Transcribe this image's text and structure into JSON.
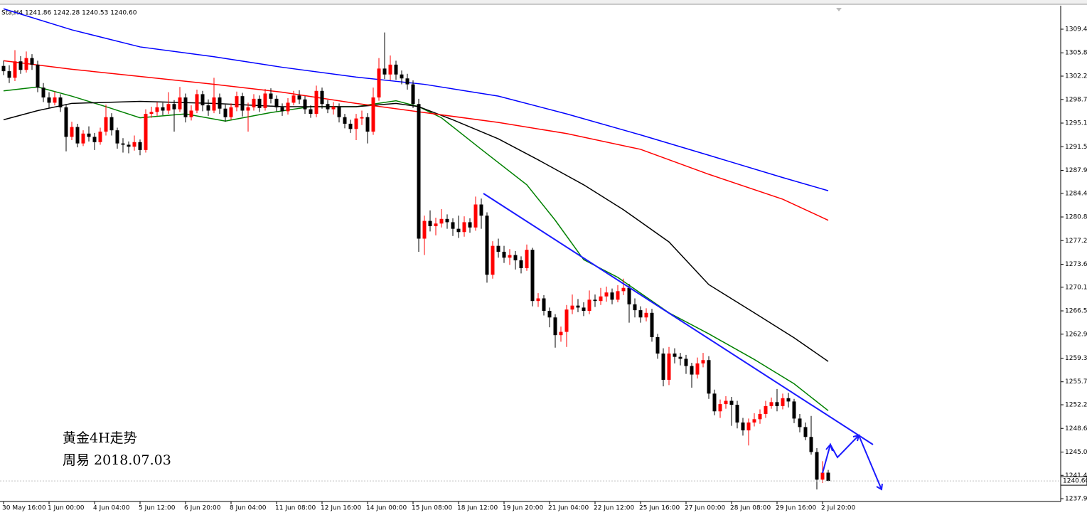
{
  "chart_data": {
    "type": "candlestick",
    "subtitle": "Sta,H4  1241.86 1242.28 1240.53 1240.60",
    "annotations": [
      "黄金4H走势",
      "周易  2018.07.03"
    ],
    "up_color": "#ff0000",
    "down_color": "#000000",
    "categories": [
      "30 May 16:00",
      null,
      null,
      null,
      null,
      null,
      null,
      null,
      "1 Jun 00:00",
      null,
      null,
      null,
      null,
      null,
      null,
      null,
      "4 Jun 04:00",
      null,
      null,
      null,
      null,
      null,
      null,
      null,
      "5 Jun 12:00",
      null,
      null,
      null,
      null,
      null,
      null,
      null,
      "6 Jun 20:00",
      null,
      null,
      null,
      null,
      null,
      null,
      null,
      "8 Jun 04:00",
      null,
      null,
      null,
      null,
      null,
      null,
      null,
      "11 Jun 08:00",
      null,
      null,
      null,
      null,
      null,
      null,
      null,
      "12 Jun 16:00",
      null,
      null,
      null,
      null,
      null,
      null,
      null,
      "14 Jun 00:00",
      null,
      null,
      null,
      null,
      null,
      null,
      null,
      "15 Jun 08:00",
      null,
      null,
      null,
      null,
      null,
      null,
      null,
      "18 Jun 12:00",
      null,
      null,
      null,
      null,
      null,
      null,
      null,
      "19 Jun 20:00",
      null,
      null,
      null,
      null,
      null,
      null,
      null,
      "21 Jun 04:00",
      null,
      null,
      null,
      null,
      null,
      null,
      null,
      "22 Jun 12:00",
      null,
      null,
      null,
      null,
      null,
      null,
      null,
      "25 Jun 16:00",
      null,
      null,
      null,
      null,
      null,
      null,
      null,
      "27 Jun 00:00",
      null,
      null,
      null,
      null,
      null,
      null,
      null,
      "28 Jun 08:00",
      null,
      null,
      null,
      null,
      null,
      null,
      null,
      "29 Jun 16:00",
      null,
      null,
      null,
      null,
      null,
      null,
      null,
      "2 Jul 20:00",
      null
    ],
    "open": [
      1303.8,
      1303.0,
      1302.0,
      1304.5,
      1303.2,
      1305.0,
      1304.0,
      1300.5,
      1299.0,
      1298.2,
      1299.0,
      1297.5,
      1293.0,
      1294.5,
      1292.0,
      1293.5,
      1293.0,
      1292.2,
      1293.8,
      1296.0,
      1294.0,
      1292.0,
      1291.8,
      1291.5,
      1292.2,
      1291.0,
      1296.5,
      1296.8,
      1297.5,
      1297.0,
      1298.0,
      1297.2,
      1299.0,
      1296.0,
      1297.0,
      1299.5,
      1297.8,
      1297.0,
      1299.0,
      1297.3,
      1296.0,
      1297.5,
      1299.2,
      1297.0,
      1297.5,
      1298.8,
      1297.4,
      1299.6,
      1298.8,
      1297.5,
      1296.9,
      1298.2,
      1299.3,
      1298.7,
      1297.2,
      1296.5,
      1300.0,
      1298.0,
      1297.2,
      1297.6,
      1296.0,
      1295.0,
      1294.2,
      1295.8,
      1296.0,
      1293.8,
      1299.0,
      1303.4,
      1302.5,
      1304.0,
      1302.5,
      1301.9,
      1301.0,
      1298.0,
      1277.5,
      1280.2,
      1279.4,
      1279.8,
      1280.5,
      1280.0,
      1279.0,
      1278.5,
      1280.0,
      1279.2,
      1282.7,
      1281.0,
      1272.0,
      1276.4,
      1275.5,
      1274.6,
      1275.0,
      1274.2,
      1273.0,
      1275.8,
      1268.0,
      1268.4,
      1266.5,
      1265.5,
      1262.8,
      1263.3,
      1266.7,
      1267.3,
      1267.0,
      1266.5,
      1268.2,
      1268.0,
      1268.7,
      1269.3,
      1268.2,
      1269.5,
      1270.0,
      1267.5,
      1266.6,
      1265.5,
      1266.2,
      1262.5,
      1260.0,
      1256.0,
      1260.0,
      1259.5,
      1259.2,
      1258.1,
      1256.8,
      1258.5,
      1259.0,
      1253.9,
      1251.2,
      1252.3,
      1252.8,
      1252.2,
      1249.5,
      1248.3,
      1249.5,
      1250.0,
      1250.8,
      1252.0,
      1252.6,
      1252.0,
      1253.2,
      1252.7,
      1250.1,
      1248.8,
      1247.3,
      1245.0,
      1240.8,
      1241.86
    ],
    "high": [
      1304.6,
      1303.9,
      1306.2,
      1305.3,
      1306.0,
      1305.6,
      1304.6,
      1301.2,
      1299.8,
      1299.9,
      1299.5,
      1298.0,
      1295.3,
      1295.0,
      1294.0,
      1294.6,
      1293.6,
      1294.4,
      1297.9,
      1296.6,
      1294.4,
      1292.8,
      1292.3,
      1293.2,
      1292.6,
      1297.2,
      1297.6,
      1298.3,
      1298.2,
      1299.8,
      1298.6,
      1300.6,
      1299.6,
      1297.8,
      1300.2,
      1300.0,
      1298.7,
      1302.0,
      1299.6,
      1297.9,
      1298.1,
      1299.9,
      1299.7,
      1298.2,
      1299.5,
      1299.3,
      1300.3,
      1300.4,
      1299.3,
      1298.1,
      1298.9,
      1300.0,
      1300.1,
      1299.2,
      1297.8,
      1300.8,
      1300.5,
      1298.6,
      1298.3,
      1298.1,
      1296.5,
      1295.6,
      1296.5,
      1297.0,
      1296.6,
      1300.5,
      1305.0,
      1308.9,
      1305.4,
      1304.6,
      1303.1,
      1302.6,
      1301.6,
      1298.8,
      1281.0,
      1281.8,
      1280.7,
      1282.0,
      1281.2,
      1280.6,
      1281.0,
      1280.9,
      1280.6,
      1283.9,
      1283.6,
      1281.5,
      1277.1,
      1277.5,
      1276.4,
      1275.9,
      1275.6,
      1274.8,
      1276.6,
      1276.1,
      1269.2,
      1268.9,
      1267.0,
      1266.0,
      1264.1,
      1267.4,
      1269.0,
      1268.3,
      1267.8,
      1269.6,
      1269.0,
      1270.0,
      1270.2,
      1269.9,
      1270.4,
      1271.4,
      1270.6,
      1268.4,
      1267.2,
      1266.9,
      1266.8,
      1263.0,
      1260.8,
      1261.0,
      1260.8,
      1260.1,
      1259.8,
      1258.6,
      1259.4,
      1260.1,
      1259.6,
      1254.5,
      1253.0,
      1253.5,
      1253.4,
      1252.8,
      1250.2,
      1250.1,
      1250.9,
      1251.5,
      1252.8,
      1253.3,
      1254.6,
      1253.9,
      1254.0,
      1253.1,
      1250.8,
      1249.5,
      1250.5,
      1245.6,
      1243.6,
      1242.28
    ],
    "low": [
      1302.4,
      1301.2,
      1301.5,
      1302.6,
      1302.8,
      1303.2,
      1299.8,
      1298.3,
      1297.4,
      1297.8,
      1296.8,
      1290.8,
      1292.5,
      1291.4,
      1291.6,
      1292.3,
      1291.0,
      1291.8,
      1293.2,
      1293.2,
      1291.2,
      1290.6,
      1290.5,
      1290.9,
      1290.2,
      1290.6,
      1295.9,
      1296.2,
      1296.3,
      1296.5,
      1293.8,
      1296.8,
      1295.2,
      1295.5,
      1296.6,
      1296.9,
      1296.2,
      1296.6,
      1296.5,
      1295.3,
      1295.6,
      1296.9,
      1296.1,
      1293.8,
      1297.0,
      1296.8,
      1297.0,
      1298.1,
      1296.9,
      1296.2,
      1296.4,
      1297.8,
      1298.0,
      1296.5,
      1295.9,
      1296.0,
      1297.3,
      1296.6,
      1296.4,
      1295.2,
      1294.3,
      1293.6,
      1292.5,
      1294.8,
      1292.0,
      1293.3,
      1298.5,
      1301.8,
      1301.6,
      1301.7,
      1301.0,
      1300.2,
      1297.4,
      1275.5,
      1275.0,
      1278.6,
      1278.0,
      1279.2,
      1279.0,
      1277.9,
      1277.6,
      1277.8,
      1278.4,
      1278.7,
      1279.0,
      1270.8,
      1271.4,
      1274.6,
      1273.8,
      1273.5,
      1272.8,
      1272.2,
      1272.6,
      1267.2,
      1267.1,
      1265.8,
      1264.0,
      1260.9,
      1261.8,
      1261.0,
      1266.0,
      1266.3,
      1265.7,
      1266.0,
      1267.1,
      1267.4,
      1267.9,
      1267.5,
      1267.8,
      1268.9,
      1264.7,
      1265.5,
      1264.7,
      1264.9,
      1261.8,
      1259.2,
      1255.0,
      1255.2,
      1258.5,
      1258.2,
      1256.9,
      1254.8,
      1256.2,
      1257.9,
      1253.1,
      1250.6,
      1250.2,
      1251.6,
      1249.0,
      1248.6,
      1247.5,
      1246.0,
      1248.9,
      1249.3,
      1250.2,
      1251.6,
      1251.2,
      1251.5,
      1251.8,
      1249.4,
      1248.0,
      1246.8,
      1244.6,
      1239.3,
      1240.3,
      1240.53
    ],
    "close": [
      1303.0,
      1302.0,
      1304.5,
      1303.2,
      1305.0,
      1304.0,
      1300.5,
      1299.0,
      1298.2,
      1299.0,
      1297.5,
      1293.0,
      1294.5,
      1292.0,
      1293.5,
      1293.0,
      1292.2,
      1293.8,
      1296.0,
      1294.0,
      1292.0,
      1291.8,
      1291.5,
      1292.2,
      1291.0,
      1296.5,
      1296.8,
      1297.5,
      1297.0,
      1298.0,
      1297.2,
      1299.0,
      1296.0,
      1297.0,
      1299.5,
      1297.8,
      1297.0,
      1299.0,
      1297.3,
      1296.0,
      1297.5,
      1299.2,
      1297.0,
      1297.5,
      1298.8,
      1297.4,
      1299.6,
      1298.8,
      1297.5,
      1296.9,
      1298.2,
      1299.3,
      1298.7,
      1297.2,
      1296.5,
      1300.0,
      1298.0,
      1297.2,
      1297.6,
      1296.0,
      1295.0,
      1294.2,
      1295.8,
      1296.0,
      1293.8,
      1299.0,
      1303.4,
      1302.5,
      1304.0,
      1302.5,
      1301.9,
      1301.0,
      1298.0,
      1277.5,
      1280.2,
      1279.4,
      1279.8,
      1280.5,
      1280.0,
      1279.0,
      1278.5,
      1280.0,
      1279.2,
      1282.7,
      1281.0,
      1272.0,
      1276.4,
      1275.5,
      1274.6,
      1275.0,
      1274.2,
      1273.0,
      1275.8,
      1268.0,
      1268.4,
      1266.5,
      1265.5,
      1262.8,
      1263.3,
      1266.7,
      1267.3,
      1267.0,
      1266.5,
      1268.2,
      1268.0,
      1268.7,
      1269.3,
      1268.2,
      1269.5,
      1270.0,
      1267.5,
      1266.6,
      1265.5,
      1266.2,
      1262.5,
      1260.0,
      1256.0,
      1260.0,
      1259.5,
      1259.2,
      1258.1,
      1256.8,
      1258.5,
      1259.0,
      1253.9,
      1251.2,
      1252.3,
      1252.8,
      1252.2,
      1249.5,
      1248.3,
      1249.5,
      1250.0,
      1250.8,
      1252.0,
      1252.6,
      1252.0,
      1253.2,
      1252.7,
      1250.1,
      1248.8,
      1247.3,
      1245.0,
      1240.8,
      1241.86,
      1240.6
    ],
    "series": [
      {
        "color": "#008000",
        "x": [
          0,
          6,
          12,
          18,
          24,
          32,
          39,
          47,
          54,
          62,
          69,
          73,
          77,
          84,
          92,
          97,
          102,
          108,
          117,
          124,
          132,
          139,
          145
        ],
        "values": [
          1300.0,
          1300.6,
          1299.2,
          1297.6,
          1295.9,
          1296.5,
          1295.4,
          1296.7,
          1297.6,
          1297.6,
          1298.5,
          1297.6,
          1295.9,
          1291.1,
          1285.7,
          1280.3,
          1274.3,
          1271.6,
          1266.2,
          1263.0,
          1259.1,
          1255.4,
          1251.3
        ]
      },
      {
        "color": "#000000",
        "x": [
          0,
          6,
          12,
          24,
          37,
          49,
          62,
          69,
          73,
          79,
          87,
          94,
          102,
          109,
          117,
          124,
          132,
          139,
          145
        ],
        "values": [
          1295.6,
          1297.0,
          1298.1,
          1298.4,
          1298.1,
          1297.6,
          1297.6,
          1298.1,
          1297.6,
          1295.6,
          1292.7,
          1289.5,
          1285.7,
          1281.9,
          1277.0,
          1270.5,
          1266.2,
          1262.4,
          1258.8
        ]
      },
      {
        "color": "#ff0000",
        "x": [
          0,
          12,
          24,
          37,
          49,
          62,
          74,
          87,
          99,
          112,
          124,
          137,
          145
        ],
        "values": [
          1304.6,
          1303.3,
          1302.2,
          1301.0,
          1299.8,
          1298.1,
          1296.7,
          1295.2,
          1293.5,
          1291.1,
          1287.3,
          1283.5,
          1280.3
        ]
      },
      {
        "color": "#0000ff",
        "x": [
          0,
          12,
          24,
          37,
          49,
          62,
          74,
          87,
          99,
          112,
          124,
          137,
          145
        ],
        "values": [
          1312.5,
          1309.3,
          1306.7,
          1305.2,
          1303.6,
          1302.1,
          1301.0,
          1299.2,
          1296.5,
          1293.3,
          1290.2,
          1286.8,
          1284.8
        ]
      }
    ],
    "last_price": {
      "value": 1240.6,
      "label": "1240.60"
    },
    "ylim": [
      1237.47,
      1312.76
    ],
    "yticks": [
      {
        "value": 1309.4,
        "label": "1309.40"
      },
      {
        "value": 1305.8,
        "label": "1305.80"
      },
      {
        "value": 1302.25,
        "label": "1302.25"
      },
      {
        "value": 1298.7,
        "label": "1298.70"
      },
      {
        "value": 1295.1,
        "label": "1295.10"
      },
      {
        "value": 1291.5,
        "label": "1291.50"
      },
      {
        "value": 1287.9,
        "label": "1287.90"
      },
      {
        "value": 1284.4,
        "label": "1284.40"
      },
      {
        "value": 1280.8,
        "label": "1280.80"
      },
      {
        "value": 1277.2,
        "label": "1277.20"
      },
      {
        "value": 1273.6,
        "label": "1273.60"
      },
      {
        "value": 1270.1,
        "label": "1270.10"
      },
      {
        "value": 1266.5,
        "label": "1266.50"
      },
      {
        "value": 1262.95,
        "label": "1262.95"
      },
      {
        "value": 1259.3,
        "label": "1259.30"
      },
      {
        "value": 1255.7,
        "label": "1255.70"
      },
      {
        "value": 1252.2,
        "label": "1252.20"
      },
      {
        "value": 1248.6,
        "label": "1248.60"
      },
      {
        "value": 1245,
        "label": "1245.00"
      },
      {
        "value": 1241.45,
        "label": "1241.45"
      },
      {
        "value": 1237.9,
        "label": "1237.90"
      }
    ],
    "grid": false
  }
}
